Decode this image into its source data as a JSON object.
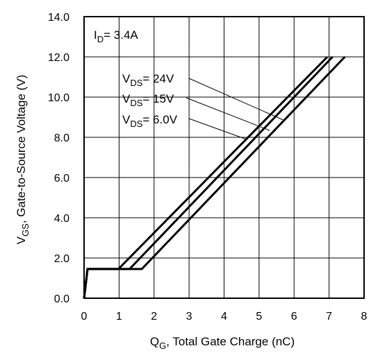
{
  "chart_data": {
    "type": "line",
    "xlabel": {
      "main": "Q",
      "sub": "G",
      "rest": ",  Total Gate Charge (nC)"
    },
    "ylabel": {
      "main": "V",
      "sub": "GS",
      "rest": ", Gate-to-Source Voltage (V)"
    },
    "xlim": [
      0,
      8
    ],
    "ylim": [
      0,
      14
    ],
    "x_ticks": [
      0,
      1,
      2,
      3,
      4,
      5,
      6,
      7,
      8
    ],
    "x_tick_labels": [
      "0",
      "1",
      "2",
      "3",
      "4",
      "5",
      "6",
      "7",
      "8"
    ],
    "y_ticks": [
      0,
      2,
      4,
      6,
      8,
      10,
      12,
      14
    ],
    "y_tick_labels": [
      "0.0",
      "2.0",
      "4.0",
      "6.0",
      "8.0",
      "10.0",
      "12.0",
      "14.0"
    ],
    "grid": true,
    "condition": {
      "main": "I",
      "sub": "D",
      "rest": "= 3.4A"
    },
    "series": [
      {
        "name": {
          "main": "V",
          "sub": "DS",
          "rest": "= 24V"
        },
        "points": [
          [
            0,
            0
          ],
          [
            0.1,
            1.45
          ],
          [
            1.65,
            1.45
          ],
          [
            7.45,
            12.0
          ]
        ]
      },
      {
        "name": {
          "main": "V",
          "sub": "DS",
          "rest": "= 15V"
        },
        "points": [
          [
            0,
            0
          ],
          [
            0.1,
            1.45
          ],
          [
            1.3,
            1.45
          ],
          [
            7.1,
            12.0
          ]
        ]
      },
      {
        "name": {
          "main": "V",
          "sub": "DS",
          "rest": "= 6.0V"
        },
        "points": [
          [
            0,
            0
          ],
          [
            0.1,
            1.45
          ],
          [
            0.98,
            1.45
          ],
          [
            6.95,
            12.0
          ]
        ]
      }
    ],
    "legend_placement": "top-center, leader lines to curves"
  }
}
